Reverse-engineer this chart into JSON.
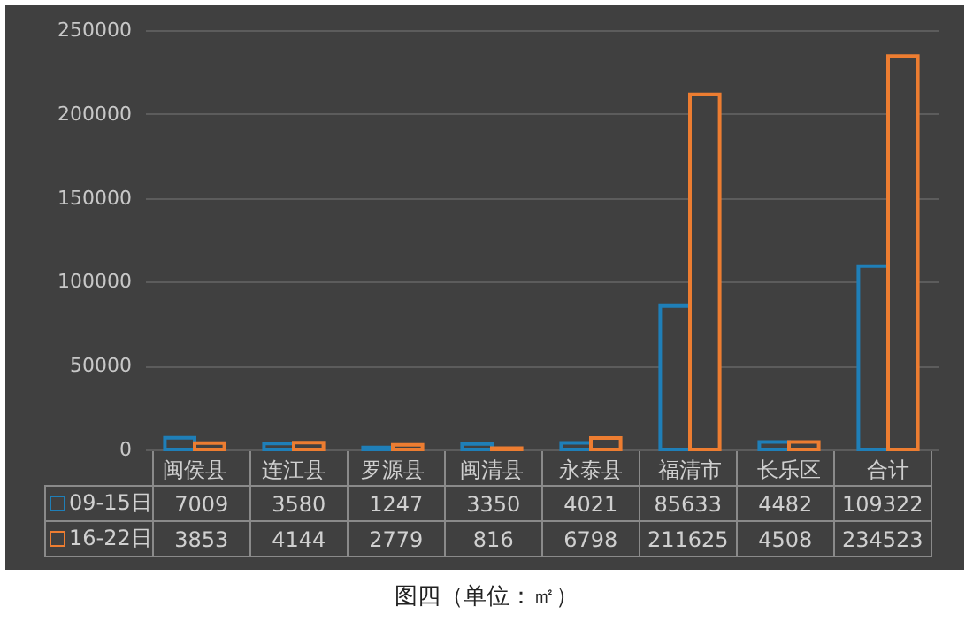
{
  "chart_data": {
    "type": "bar",
    "title": "图四（单位：㎡）",
    "categories": [
      "闽侯县",
      "连江县",
      "罗源县",
      "闽清县",
      "永泰县",
      "福清市",
      "长乐区",
      "合计"
    ],
    "series": [
      {
        "name": "09-15日",
        "color": "#1f7fb8",
        "values": [
          7009,
          3580,
          1247,
          3350,
          4021,
          85633,
          4482,
          109322
        ]
      },
      {
        "name": "16-22日",
        "color": "#ed7d31",
        "values": [
          3853,
          4144,
          2779,
          816,
          6798,
          211625,
          4508,
          234523
        ]
      }
    ],
    "ylim": [
      0,
      250000
    ],
    "yticks": [
      0,
      50000,
      100000,
      150000,
      200000,
      250000
    ],
    "grid": "y",
    "legend": "bottom",
    "data_labels": true
  }
}
